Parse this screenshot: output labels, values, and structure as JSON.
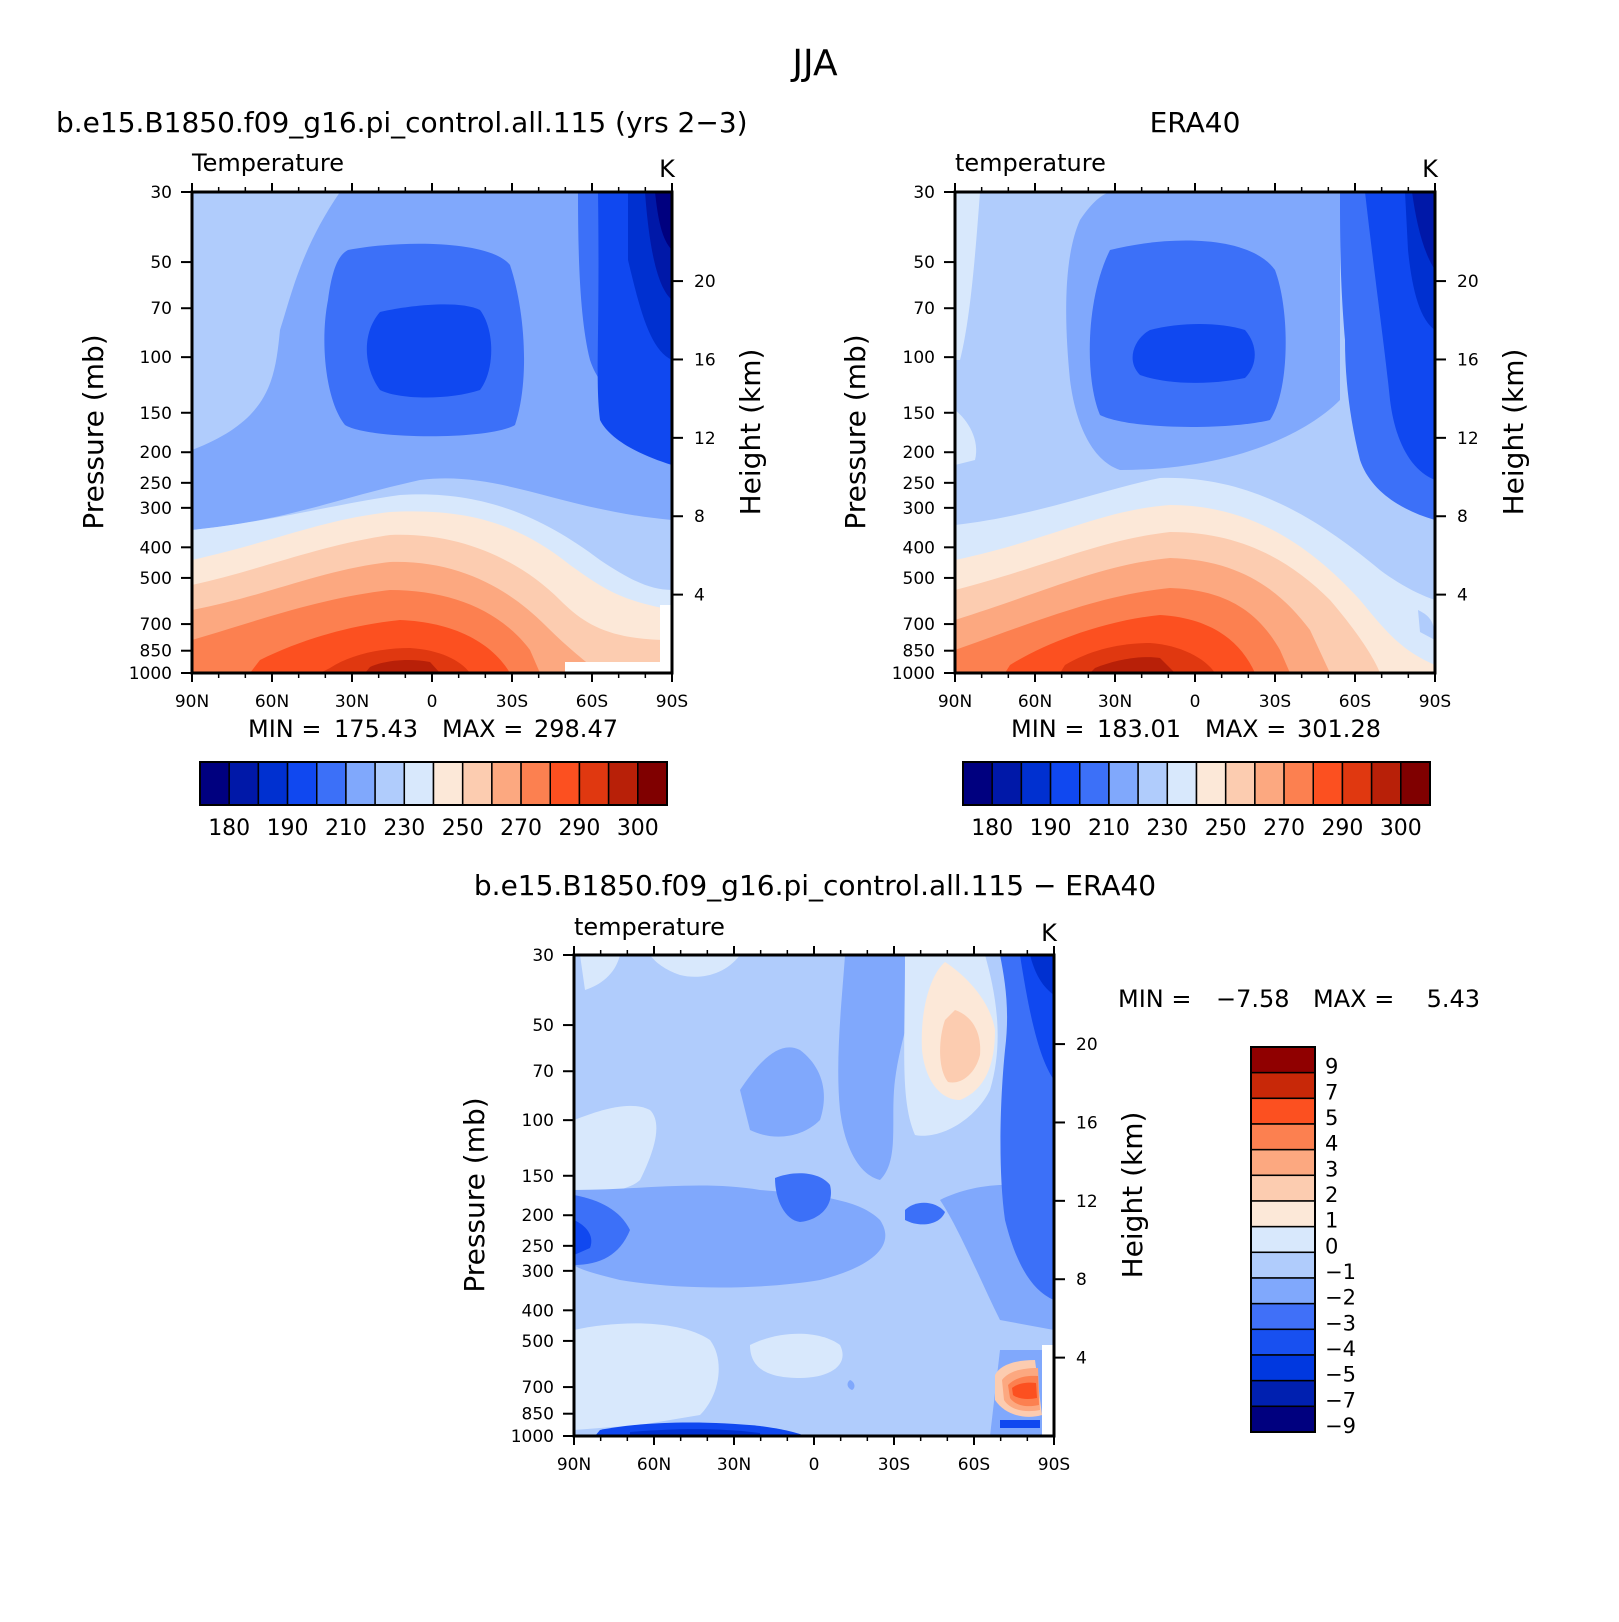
{
  "title": "JJA",
  "colors": {
    "main": [
      "#00007f",
      "#0018a8",
      "#0030d0",
      "#1048f0",
      "#3c70f8",
      "#80a8fc",
      "#b0ccfc",
      "#d8e8fc",
      "#fce8d8",
      "#fcccb0",
      "#fca880",
      "#fc8050",
      "#fc5020",
      "#e03810",
      "#b82008",
      "#800000"
    ],
    "diff": [
      "#00007f",
      "#0020b0",
      "#0038e0",
      "#1850f0",
      "#4070f8",
      "#80a8fc",
      "#b0ccfc",
      "#d8e8fc",
      "#fce8d8",
      "#fcccb0",
      "#fca880",
      "#fc8050",
      "#fc5020",
      "#c82808",
      "#900000"
    ]
  },
  "chart_data": [
    {
      "type": "heatmap",
      "name": "panel-model",
      "title": "b.e15.B1850.f09_g16.pi_control.all.115 (yrs 2−3)",
      "subtitle": "Temperature",
      "units": "K",
      "ylabel": "Pressure (mb)",
      "y2label": "Height (km)",
      "x_ticks": [
        "90N",
        "60N",
        "30N",
        "0",
        "30S",
        "60S",
        "90S"
      ],
      "y_ticks": [
        "30",
        "50",
        "70",
        "100",
        "150",
        "200",
        "250",
        "300",
        "400",
        "500",
        "700",
        "850",
        "1000"
      ],
      "y2_ticks": [
        "20",
        "16",
        "12",
        "8",
        "4"
      ],
      "min_label": "MIN =",
      "min": "175.43",
      "max_label": "MAX =",
      "max": "298.47",
      "colorbar_labels": [
        "180",
        "190",
        "210",
        "230",
        "250",
        "270",
        "290",
        "300"
      ],
      "levels": [
        175,
        180,
        185,
        190,
        200,
        210,
        220,
        230,
        240,
        250,
        260,
        270,
        280,
        290,
        295,
        300
      ]
    },
    {
      "type": "heatmap",
      "name": "panel-era40",
      "title": "ERA40",
      "subtitle": "temperature",
      "units": "K",
      "ylabel": "Pressure (mb)",
      "y2label": "Height (km)",
      "x_ticks": [
        "90N",
        "60N",
        "30N",
        "0",
        "30S",
        "60S",
        "90S"
      ],
      "y_ticks": [
        "30",
        "50",
        "70",
        "100",
        "150",
        "200",
        "250",
        "300",
        "400",
        "500",
        "700",
        "850",
        "1000"
      ],
      "y2_ticks": [
        "20",
        "16",
        "12",
        "8",
        "4"
      ],
      "min_label": "MIN =",
      "min": "183.01",
      "max_label": "MAX =",
      "max": "301.28",
      "colorbar_labels": [
        "180",
        "190",
        "210",
        "230",
        "250",
        "270",
        "290",
        "300"
      ],
      "levels": [
        175,
        180,
        185,
        190,
        200,
        210,
        220,
        230,
        240,
        250,
        260,
        270,
        280,
        290,
        295,
        300
      ]
    },
    {
      "type": "heatmap",
      "name": "panel-difference",
      "title": "b.e15.B1850.f09_g16.pi_control.all.115 − ERA40",
      "subtitle": "temperature",
      "units": "K",
      "ylabel": "Pressure (mb)",
      "y2label": "Height (km)",
      "x_ticks": [
        "90N",
        "60N",
        "30N",
        "0",
        "30S",
        "60S",
        "90S"
      ],
      "y_ticks": [
        "30",
        "50",
        "70",
        "100",
        "150",
        "200",
        "250",
        "300",
        "400",
        "500",
        "700",
        "850",
        "1000"
      ],
      "y2_ticks": [
        "20",
        "16",
        "12",
        "8",
        "4"
      ],
      "min_label": "MIN =",
      "min": "−7.58",
      "max_label": "MAX =",
      "max": "5.43",
      "colorbar_labels": [
        "9",
        "7",
        "5",
        "4",
        "3",
        "2",
        "1",
        "0",
        "−1",
        "−2",
        "−3",
        "−4",
        "−5",
        "−7",
        "−9"
      ]
    }
  ]
}
